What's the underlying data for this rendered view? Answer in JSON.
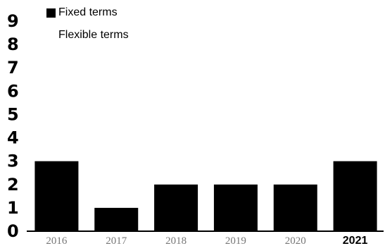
{
  "chart_data": {
    "type": "bar",
    "categories": [
      "2016",
      "2017",
      "2018",
      "2019",
      "2020",
      "2021"
    ],
    "series": [
      {
        "name": "Fixed terms",
        "values": [
          3,
          1,
          2,
          2,
          2,
          3
        ],
        "color": "#000000"
      },
      {
        "name": "Flexible terms",
        "values": [
          0,
          0,
          0,
          0,
          0,
          0
        ],
        "color": "#ffffff"
      }
    ],
    "ylim": [
      0,
      9
    ],
    "yticks": [
      "0",
      "1",
      "2",
      "3",
      "4",
      "5",
      "6",
      "7",
      "8",
      "9"
    ],
    "grid": false,
    "legend": "top-left",
    "highlight_category": "2021"
  }
}
